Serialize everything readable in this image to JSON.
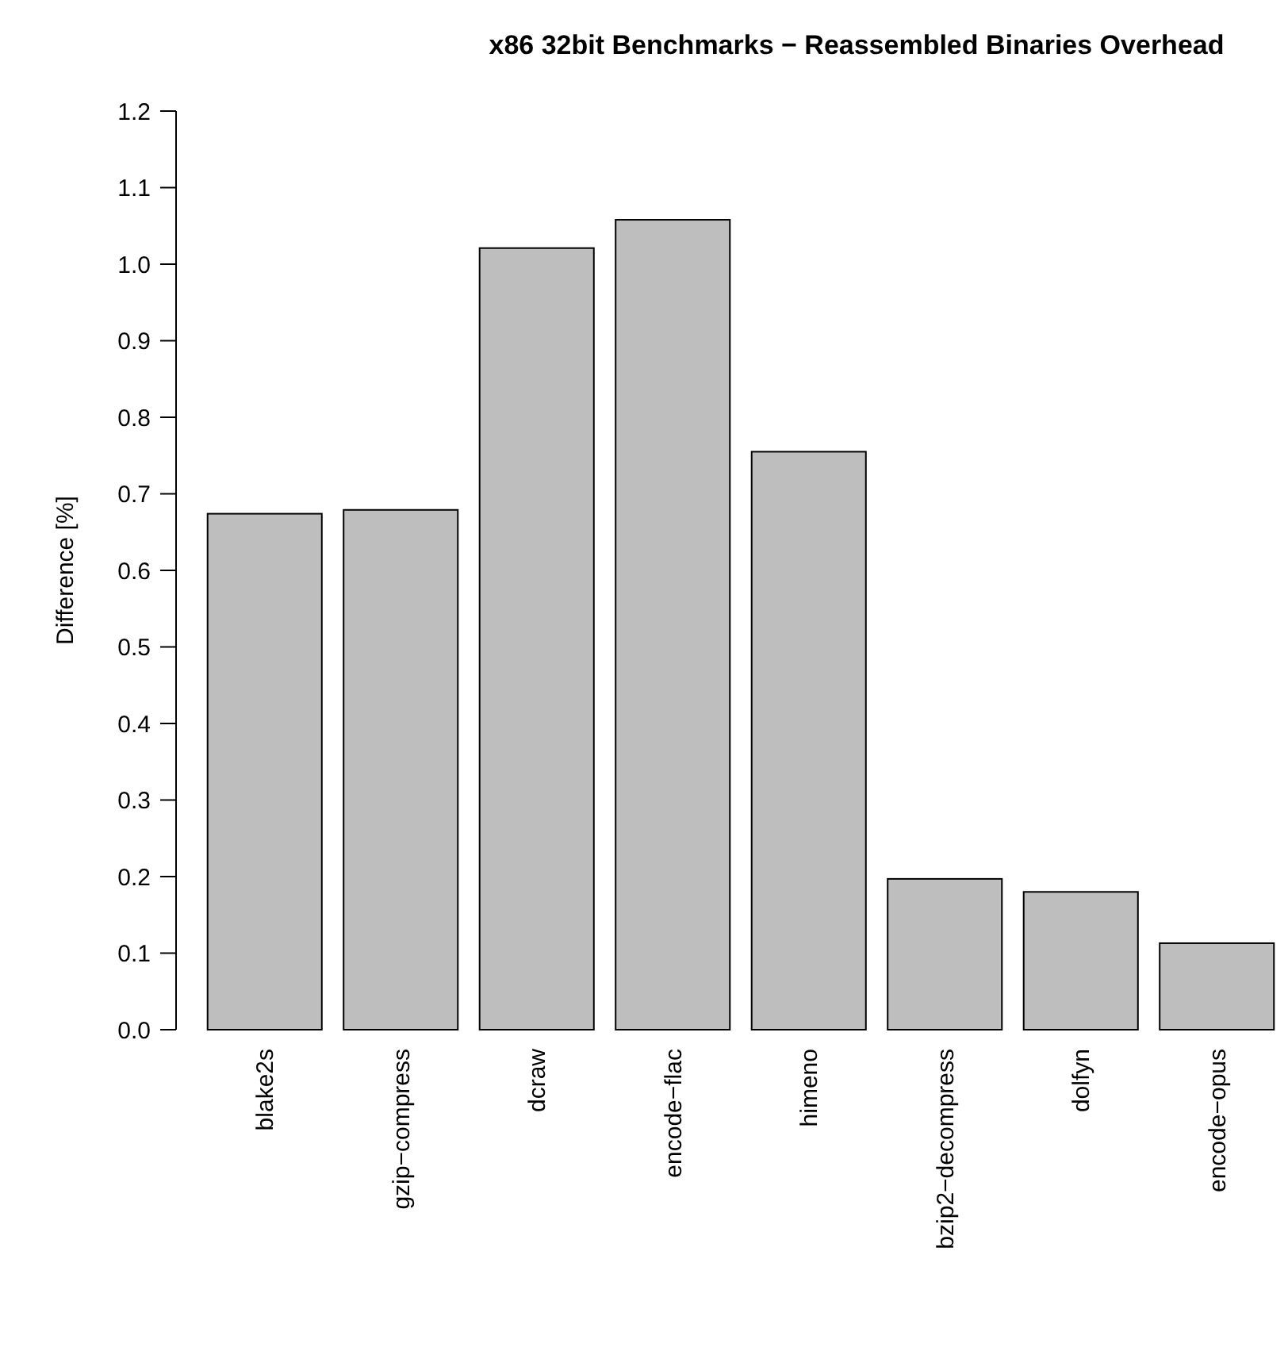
{
  "chart_data": {
    "type": "bar",
    "title": "x86 32bit Benchmarks − Reassembled Binaries Overhead",
    "ylabel": "Difference [%]",
    "categories": [
      "blake2s",
      "gzip−compress",
      "dcraw",
      "encode−flac",
      "himeno",
      "bzip2−decompress",
      "dolfyn",
      "encode−opus"
    ],
    "values": [
      0.674,
      0.679,
      1.021,
      1.058,
      0.755,
      0.197,
      0.18,
      0.113
    ],
    "color": "#bebebe",
    "ylim": [
      0,
      1.2
    ],
    "yticks": [
      {
        "value": 0,
        "label": "0.0"
      },
      0.1,
      0.2,
      0.3,
      0.4,
      0.5,
      0.6,
      0.7,
      0.8,
      0.9,
      {
        "value": 1,
        "label": "1.0"
      },
      1.1,
      1.2
    ],
    "grid": false
  }
}
